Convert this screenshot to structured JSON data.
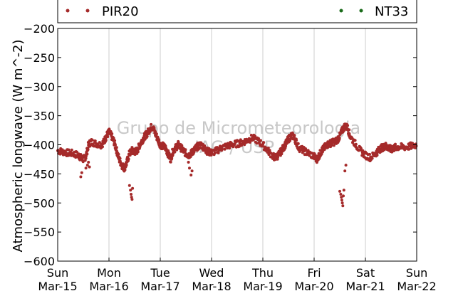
{
  "chart_data": {
    "type": "scatter",
    "legend": {
      "placement": "top",
      "entries": [
        {
          "label": "PIR20",
          "color": "#a52a2a"
        },
        {
          "label": "NT33",
          "color": "#1a6b1a"
        }
      ]
    },
    "ylabel": "Atmospheric longwave (W m^-2)",
    "ylim": [
      -600,
      -200
    ],
    "yticks": [
      "−200",
      "−250",
      "−300",
      "−350",
      "−400",
      "−450",
      "−500",
      "−550",
      "−600"
    ],
    "ytick_values": [
      -200,
      -250,
      -300,
      -350,
      -400,
      -450,
      -500,
      -550,
      -600
    ],
    "xlim": [
      0,
      7
    ],
    "xticks": [
      {
        "day": "Sun",
        "date": "Mar-15"
      },
      {
        "day": "Mon",
        "date": "Mar-16"
      },
      {
        "day": "Tue",
        "date": "Mar-17"
      },
      {
        "day": "Wed",
        "date": "Mar-18"
      },
      {
        "day": "Thu",
        "date": "Mar-19"
      },
      {
        "day": "Fri",
        "date": "Mar-20"
      },
      {
        "day": "Sat",
        "date": "Mar-21"
      },
      {
        "day": "Sun",
        "date": "Mar-22"
      }
    ],
    "grid": "vertical",
    "watermark": [
      "Grupo de Micrometeorologia",
      "IAG / USP"
    ],
    "series": [
      {
        "name": "PIR20",
        "color": "#a52a2a",
        "x": [
          0.0,
          0.1,
          0.2,
          0.3,
          0.4,
          0.45,
          0.5,
          0.55,
          0.6,
          0.65,
          0.75,
          0.85,
          0.9,
          0.95,
          1.0,
          1.05,
          1.1,
          1.15,
          1.2,
          1.25,
          1.3,
          1.35,
          1.4,
          1.45,
          1.5,
          1.55,
          1.6,
          1.65,
          1.7,
          1.75,
          1.8,
          1.85,
          1.9,
          1.95,
          2.0,
          2.05,
          2.1,
          2.15,
          2.2,
          2.25,
          2.3,
          2.35,
          2.4,
          2.45,
          2.5,
          2.55,
          2.6,
          2.65,
          2.7,
          2.75,
          2.8,
          2.85,
          2.9,
          2.95,
          3.0,
          3.1,
          3.2,
          3.3,
          3.4,
          3.5,
          3.6,
          3.7,
          3.8,
          3.9,
          4.0,
          4.1,
          4.2,
          4.25,
          4.3,
          4.35,
          4.4,
          4.45,
          4.5,
          4.55,
          4.6,
          4.65,
          4.7,
          4.8,
          4.9,
          5.0,
          5.05,
          5.1,
          5.15,
          5.2,
          5.25,
          5.3,
          5.35,
          5.4,
          5.45,
          5.5,
          5.55,
          5.6,
          5.65,
          5.7,
          5.8,
          5.9,
          6.0,
          6.1,
          6.2,
          6.25,
          6.3,
          6.35,
          6.4,
          6.45,
          6.5,
          6.55,
          6.6,
          6.7,
          6.8,
          6.9,
          7.0
        ],
        "y": [
          -410,
          -412,
          -414,
          -415,
          -418,
          -422,
          -425,
          -420,
          -400,
          -395,
          -398,
          -400,
          -395,
          -385,
          -378,
          -385,
          -395,
          -410,
          -425,
          -435,
          -440,
          -430,
          -415,
          -410,
          -412,
          -410,
          -400,
          -392,
          -385,
          -380,
          -372,
          -368,
          -380,
          -390,
          -400,
          -402,
          -405,
          -415,
          -425,
          -410,
          -405,
          -400,
          -405,
          -410,
          -415,
          -418,
          -415,
          -410,
          -405,
          -402,
          -400,
          -405,
          -410,
          -412,
          -414,
          -410,
          -405,
          -402,
          -400,
          -398,
          -396,
          -392,
          -388,
          -393,
          -400,
          -410,
          -420,
          -422,
          -418,
          -412,
          -405,
          -398,
          -390,
          -385,
          -385,
          -395,
          -405,
          -410,
          -415,
          -420,
          -425,
          -418,
          -410,
          -405,
          -400,
          -398,
          -396,
          -395,
          -392,
          -385,
          -375,
          -368,
          -370,
          -385,
          -398,
          -410,
          -418,
          -422,
          -415,
          -410,
          -406,
          -404,
          -402,
          -405,
          -408,
          -406,
          -404,
          -404,
          -404,
          -402,
          -400
        ]
      },
      {
        "name": "NT33",
        "color": "#1a6b1a",
        "x": [],
        "y": []
      }
    ],
    "outliers": {
      "x": [
        0.45,
        0.47,
        0.55,
        0.58,
        0.6,
        0.62,
        1.4,
        1.42,
        1.43,
        1.44,
        1.45,
        1.46,
        2.55,
        2.57,
        2.6,
        2.62,
        5.5,
        5.52,
        5.53,
        5.54,
        5.55,
        5.56,
        5.57,
        5.58,
        5.6,
        5.62
      ],
      "y": [
        -455,
        -448,
        -440,
        -435,
        -430,
        -438,
        -470,
        -478,
        -485,
        -490,
        -494,
        -475,
        -430,
        -440,
        -452,
        -445,
        -480,
        -485,
        -490,
        -495,
        -500,
        -505,
        -488,
        -478,
        -445,
        -435
      ]
    }
  }
}
